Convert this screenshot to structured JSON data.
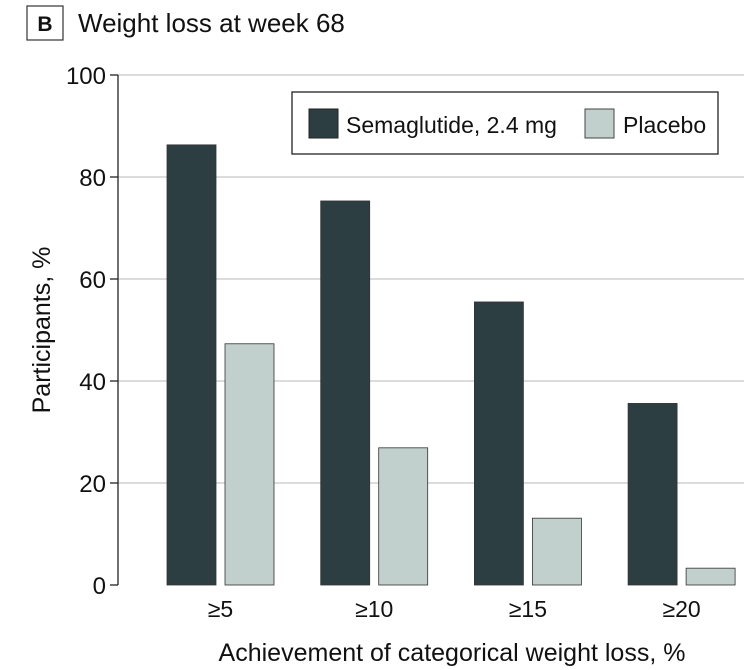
{
  "panel_label": "B",
  "chart_data": {
    "type": "bar",
    "title": "Weight loss at week 68",
    "xlabel": "Achievement of categorical weight loss, %",
    "ylabel": "Participants, %",
    "categories": [
      "≥5",
      "≥10",
      "≥15",
      "≥20"
    ],
    "ylim": [
      0,
      100
    ],
    "yticks": [
      0,
      20,
      40,
      60,
      80,
      100
    ],
    "grid": true,
    "legend_position": "top-right",
    "series": [
      {
        "name": "Semaglutide, 2.4 mg",
        "color": "#2d3e42",
        "values": [
          86.3,
          75.3,
          55.5,
          35.6
        ]
      },
      {
        "name": "Placebo",
        "color": "#c1cfcd",
        "values": [
          47.3,
          26.9,
          13.1,
          3.3
        ]
      }
    ]
  }
}
